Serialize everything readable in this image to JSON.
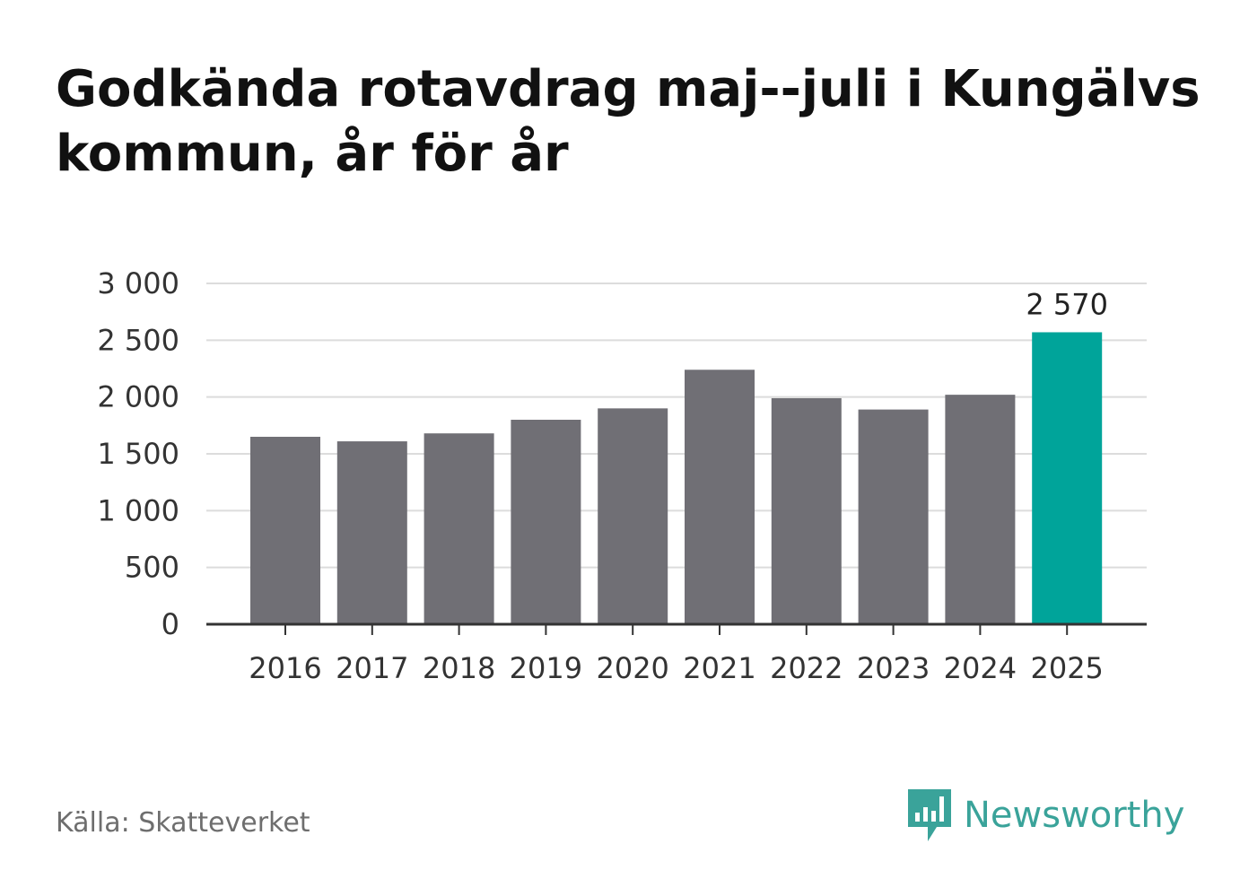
{
  "title": "Godkända rotavdrag maj--juli i Kungälvs kommun, år för år",
  "source": "Källa: Skatteverket",
  "brand": {
    "name": "Newsworthy",
    "icon": "newsworthy-logo-icon",
    "color": "#3aa39a"
  },
  "chart_data": {
    "type": "bar",
    "title": "Godkända rotavdrag maj--juli i Kungälvs kommun, år för år",
    "xlabel": "",
    "ylabel": "",
    "categories": [
      "2016",
      "2017",
      "2018",
      "2019",
      "2020",
      "2021",
      "2022",
      "2023",
      "2024",
      "2025"
    ],
    "values": [
      1650,
      1610,
      1680,
      1800,
      1900,
      2240,
      1990,
      1890,
      2020,
      2570
    ],
    "ylim": [
      0,
      3000
    ],
    "yticks": [
      0,
      500,
      1000,
      1500,
      2000,
      2500,
      3000
    ],
    "ytick_labels": [
      "0",
      "500",
      "1 000",
      "1 500",
      "2 000",
      "2 500",
      "3 000"
    ],
    "grid": true,
    "bar_color": "#706f75",
    "highlight_color": "#00a49a",
    "highlight_index": 9,
    "annotations": [
      {
        "category": "2025",
        "text": "2 570"
      }
    ]
  }
}
